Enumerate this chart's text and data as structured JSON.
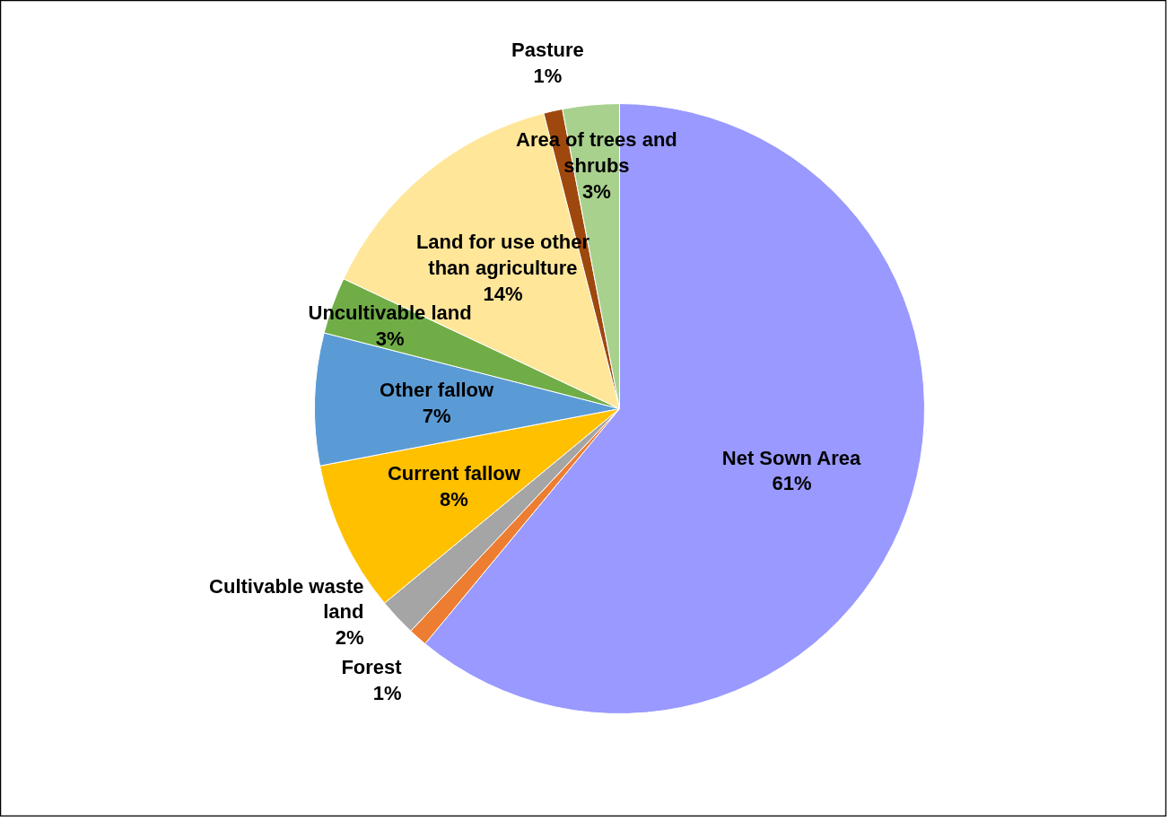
{
  "chart_data": {
    "type": "pie",
    "categories": [
      "Net Sown Area",
      "Forest",
      "Cultivable waste land",
      "Current fallow",
      "Other fallow",
      "Uncultivable land",
      "Land for use other than agriculture",
      "Pasture",
      "Area of trees and shrubs"
    ],
    "values": [
      61,
      1,
      2,
      8,
      7,
      3,
      14,
      1,
      3
    ],
    "colors": [
      "#9999ff",
      "#ed7d31",
      "#a5a5a5",
      "#ffc000",
      "#5b9bd5",
      "#70ad47",
      "#ffe699",
      "#9e480e",
      "#a9d18e"
    ],
    "value_labels": [
      "61%",
      "1%",
      "2%",
      "8%",
      "7%",
      "3%",
      "14%",
      "1%",
      "3%"
    ]
  }
}
